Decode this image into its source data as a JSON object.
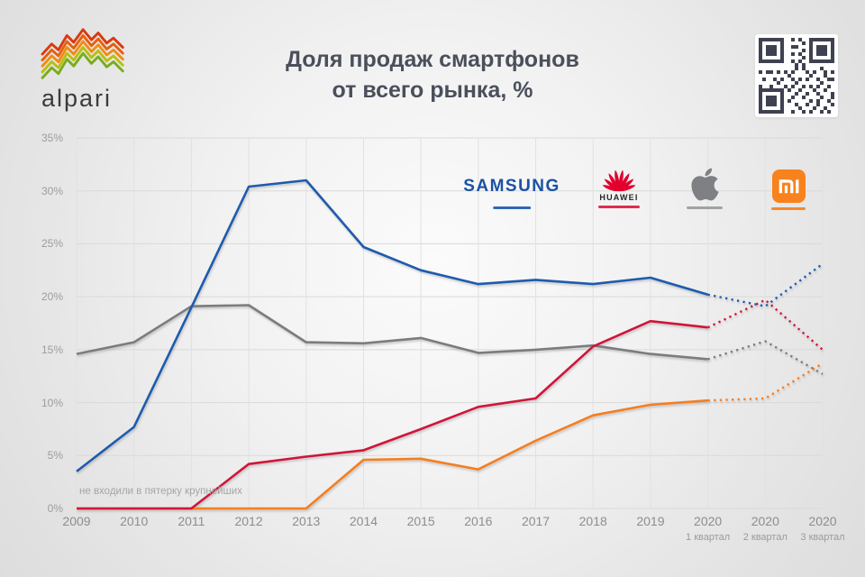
{
  "header": {
    "brand": "alpari",
    "logo_colors": [
      "#d93a10",
      "#e6600e",
      "#f08c12",
      "#b9bf10",
      "#78ad1d"
    ],
    "title_line1": "Доля продаж смартфонов",
    "title_line2": "от всего рынка, %",
    "qr_icon": "qr-code"
  },
  "legend": {
    "position": "top-right inside plot",
    "brands": [
      {
        "id": "samsung",
        "label": "SAMSUNG",
        "logo_color": "#1b51a5",
        "underline_color": "#2d6ab4"
      },
      {
        "id": "huawei",
        "label": "HUAWEI",
        "logo_color": "#e2002e",
        "underline_color": "#e22a4e"
      },
      {
        "id": "apple",
        "label": "",
        "logo_color": "#7e8084",
        "underline_color": "#a2a2a2"
      },
      {
        "id": "xiaomi",
        "label": "",
        "logo_color": "#f8821e",
        "underline_color": "#f6872b"
      }
    ]
  },
  "annotation_note": "не входили в пятерку крупнейших",
  "chart_data": {
    "type": "line",
    "title": "Доля продаж смартфонов от всего рынка, %",
    "xlabel": "",
    "ylabel": "",
    "ylim": [
      0,
      35
    ],
    "yticks": [
      0,
      5,
      10,
      15,
      20,
      25,
      30,
      35
    ],
    "ytick_suffix": "%",
    "grid": true,
    "x": [
      "2009",
      "2010",
      "2011",
      "2012",
      "2013",
      "2014",
      "2015",
      "2016",
      "2017",
      "2018",
      "2019",
      "2020",
      "2020",
      "2020"
    ],
    "x_sub": [
      "",
      "",
      "",
      "",
      "",
      "",
      "",
      "",
      "",
      "",
      "",
      "1 квартал",
      "2 квартал",
      "3 квартал"
    ],
    "dotted_from_index": 11,
    "dotted_note": "values after 2020 Q1 are drawn as dotted projection segments",
    "series": [
      {
        "name": "Samsung",
        "color": "#1e5bad",
        "values": [
          3.5,
          7.7,
          19.0,
          30.4,
          31.0,
          24.7,
          22.5,
          21.2,
          21.6,
          21.2,
          21.8,
          20.2,
          19.1,
          23.1
        ]
      },
      {
        "name": "Huawei",
        "color": "#d01539",
        "values": [
          0,
          0,
          0,
          4.2,
          4.9,
          5.5,
          7.5,
          9.6,
          10.4,
          15.3,
          17.7,
          17.1,
          19.7,
          15.0
        ]
      },
      {
        "name": "Apple",
        "color": "#7b7c80",
        "values": [
          14.6,
          15.7,
          19.1,
          19.2,
          15.7,
          15.6,
          16.1,
          14.7,
          15.0,
          15.4,
          14.6,
          14.1,
          15.8,
          12.7
        ]
      },
      {
        "name": "Xiaomi",
        "color": "#f57e20",
        "values": [
          0,
          0,
          0,
          0,
          0,
          4.6,
          4.7,
          3.7,
          6.4,
          8.8,
          9.8,
          10.2,
          10.4,
          13.7
        ]
      }
    ]
  }
}
